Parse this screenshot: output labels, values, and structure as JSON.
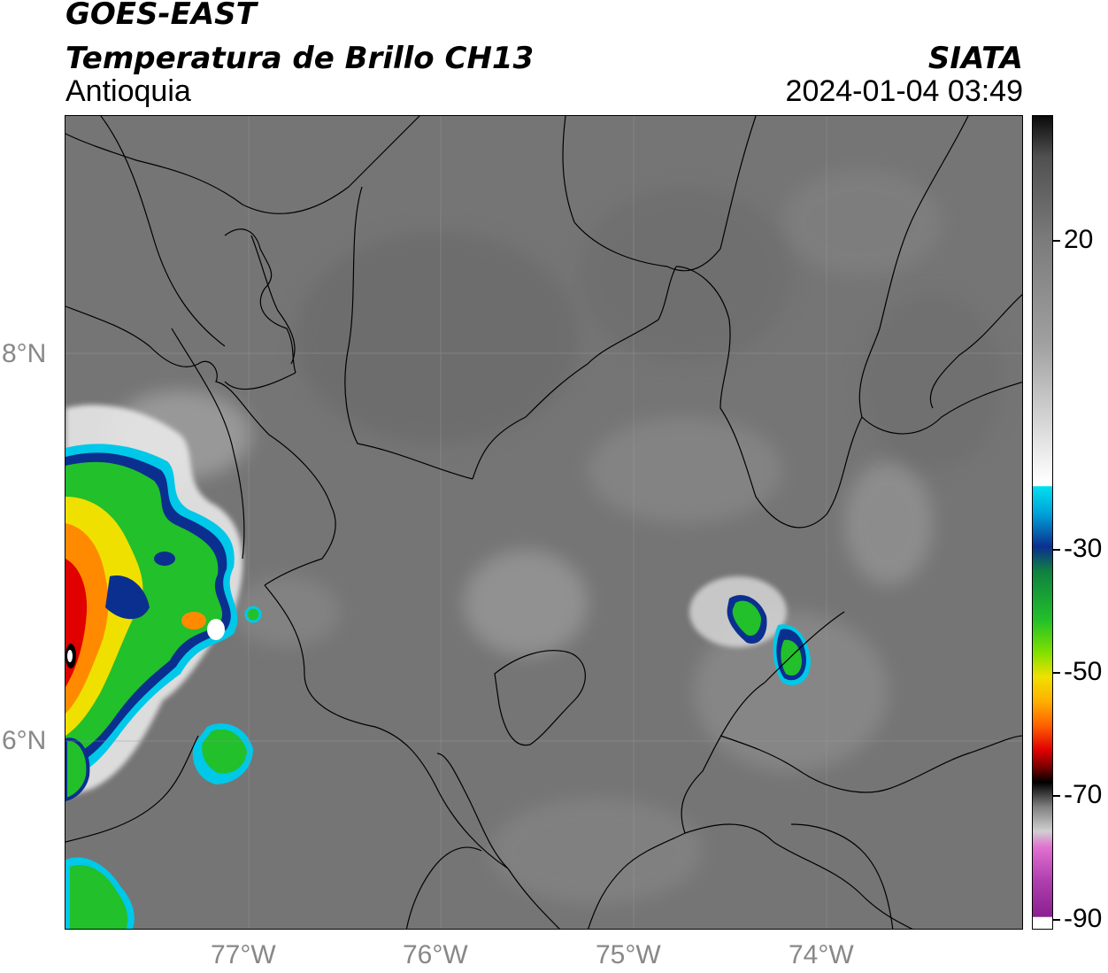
{
  "header": {
    "title_line1": "GOES-EAST",
    "title_line2": "Temperatura de Brillo CH13",
    "subtitle": "Antioquia",
    "organization": "SIATA",
    "timestamp": "2024-01-04 03:49"
  },
  "map": {
    "lat_labels": [
      "8°N",
      "6°N"
    ],
    "lon_labels": [
      "77°W",
      "76°W",
      "75°W",
      "74°W"
    ],
    "base_color": "#757575",
    "border_color": "#000000"
  },
  "colorbar": {
    "tick_labels": [
      "20",
      "-30",
      "-50",
      "-70",
      "-90"
    ],
    "colors": {
      "white": "#ffffff",
      "cyan": "#00c8e8",
      "blue": "#0b2f8f",
      "green": "#22c02a",
      "yellow": "#f0e000",
      "orange": "#ff8a00",
      "red": "#e00000",
      "black": "#000000",
      "magenta": "#b040b0"
    }
  }
}
